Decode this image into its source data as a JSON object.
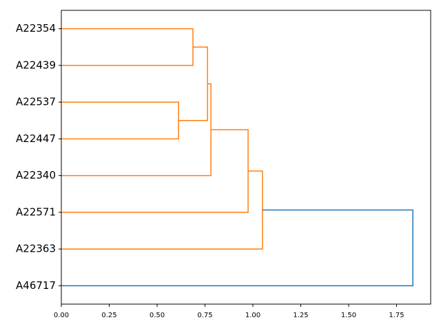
{
  "chart_data": {
    "type": "dendrogram",
    "labels": [
      "A22354",
      "A22439",
      "A22537",
      "A22447",
      "A22340",
      "A22571",
      "A22363",
      "A46717"
    ],
    "links": [
      {
        "children": [
          0,
          1
        ],
        "height": 0.687,
        "color": "#ff7f0e"
      },
      {
        "children": [
          2,
          3
        ],
        "height": 0.612,
        "color": "#ff7f0e"
      },
      {
        "children": [
          8,
          9
        ],
        "height": 0.763,
        "color": "#ff7f0e"
      },
      {
        "children": [
          10,
          4
        ],
        "height": 0.781,
        "color": "#ff7f0e"
      },
      {
        "children": [
          11,
          5
        ],
        "height": 0.975,
        "color": "#ff7f0e"
      },
      {
        "children": [
          12,
          6
        ],
        "height": 1.05,
        "color": "#ff7f0e"
      },
      {
        "children": [
          13,
          7
        ],
        "height": 1.835,
        "color": "#1f77b4"
      }
    ],
    "xlim": [
      0,
      1.928
    ],
    "xticks": [
      {
        "value": 0,
        "label": "0.00"
      },
      {
        "value": 0.25,
        "label": "0.25"
      },
      {
        "value": 0.5,
        "label": "0.50"
      },
      {
        "value": 0.75,
        "label": "0.75"
      },
      {
        "value": 1,
        "label": "1.00"
      },
      {
        "value": 1.25,
        "label": "1.25"
      },
      {
        "value": 1.5,
        "label": "1.50"
      },
      {
        "value": 1.75,
        "label": "1.75"
      }
    ]
  }
}
